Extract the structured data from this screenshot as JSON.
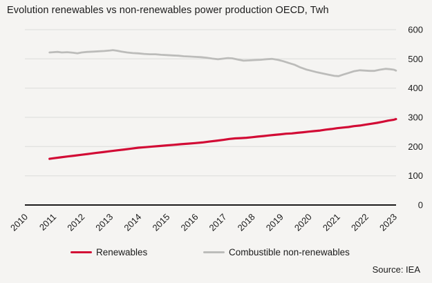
{
  "title": "Evolution renewables vs non-renewables power production OECD, Twh",
  "source": "Source: IEA",
  "legend": [
    {
      "label": "Renewables",
      "color": "#d20b35"
    },
    {
      "label": "Combustible non-renewables",
      "color": "#bcbcba"
    }
  ],
  "colors": {
    "background": "#f5f4f2",
    "grid": "#dcdbd9",
    "axis": "#1a1a1a",
    "text": "#1a1a1a"
  },
  "chart_data": {
    "type": "line",
    "title": "Evolution renewables vs non-renewables power production OECD, Twh",
    "xlabel": "",
    "ylabel": "Twh",
    "ylim": [
      0,
      600
    ],
    "y_ticks": [
      0,
      100,
      200,
      300,
      400,
      500,
      600
    ],
    "x_ticks": [
      2010,
      2011,
      2012,
      2013,
      2014,
      2015,
      2016,
      2017,
      2018,
      2019,
      2020,
      2021,
      2022,
      2023
    ],
    "grid": "horizontal-only",
    "legend_position": "bottom",
    "source": "IEA",
    "series": [
      {
        "id": "combustible-non-renewables",
        "name": "Combustible non-renewables",
        "color": "#bcbcba",
        "x": [
          2010.87,
          2011,
          2011.15,
          2011.3,
          2011.5,
          2011.7,
          2011.85,
          2012,
          2012.2,
          2012.4,
          2012.6,
          2012.8,
          2013,
          2013.1,
          2013.25,
          2013.4,
          2013.6,
          2013.8,
          2014,
          2014.2,
          2014.4,
          2014.6,
          2014.8,
          2015,
          2015.2,
          2015.4,
          2015.6,
          2015.8,
          2016,
          2016.2,
          2016.4,
          2016.6,
          2016.8,
          2017,
          2017.15,
          2017.3,
          2017.5,
          2017.7,
          2017.9,
          2018.1,
          2018.3,
          2018.5,
          2018.7,
          2018.9,
          2019.1,
          2019.3,
          2019.5,
          2019.7,
          2019.9,
          2020.1,
          2020.3,
          2020.5,
          2020.7,
          2020.9,
          2021.05,
          2021.2,
          2021.4,
          2021.6,
          2021.8,
          2022,
          2022.15,
          2022.3,
          2022.5,
          2022.7,
          2022.85,
          2023,
          2023.07
        ],
        "y": [
          522,
          523,
          524,
          522,
          523,
          521,
          519,
          522,
          524,
          525,
          526,
          527,
          529,
          530,
          528,
          525,
          522,
          520,
          519,
          517,
          516,
          516,
          514,
          513,
          512,
          511,
          509,
          508,
          507,
          506,
          504,
          501,
          499,
          501,
          503,
          502,
          498,
          494,
          495,
          496,
          497,
          499,
          500,
          497,
          492,
          486,
          480,
          471,
          464,
          459,
          454,
          450,
          446,
          442,
          441,
          446,
          452,
          458,
          461,
          460,
          459,
          459,
          463,
          466,
          465,
          463,
          460
        ]
      },
      {
        "id": "renewables",
        "name": "Renewables",
        "color": "#d20b35",
        "x": [
          2010.87,
          2011,
          2011.25,
          2011.5,
          2011.75,
          2012,
          2012.25,
          2012.5,
          2012.75,
          2013,
          2013.25,
          2013.5,
          2013.75,
          2014,
          2014.25,
          2014.5,
          2014.75,
          2015,
          2015.25,
          2015.5,
          2015.75,
          2016,
          2016.25,
          2016.5,
          2016.75,
          2017,
          2017.2,
          2017.4,
          2017.6,
          2017.8,
          2018,
          2018.2,
          2018.4,
          2018.6,
          2018.8,
          2019,
          2019.2,
          2019.4,
          2019.6,
          2019.8,
          2020,
          2020.2,
          2020.4,
          2020.6,
          2020.8,
          2021,
          2021.2,
          2021.4,
          2021.6,
          2021.8,
          2022,
          2022.2,
          2022.4,
          2022.6,
          2022.8,
          2023,
          2023.07
        ],
        "y": [
          158,
          160,
          163,
          166,
          169,
          172,
          175,
          178,
          181,
          184,
          187,
          190,
          193,
          196,
          198,
          200,
          202,
          204,
          206,
          208,
          210,
          212,
          214,
          217,
          220,
          223,
          226,
          228,
          229,
          230,
          232,
          234,
          236,
          238,
          240,
          242,
          244,
          245,
          247,
          249,
          251,
          253,
          255,
          258,
          260,
          263,
          265,
          267,
          270,
          272,
          275,
          278,
          281,
          285,
          289,
          292,
          294
        ]
      }
    ]
  }
}
